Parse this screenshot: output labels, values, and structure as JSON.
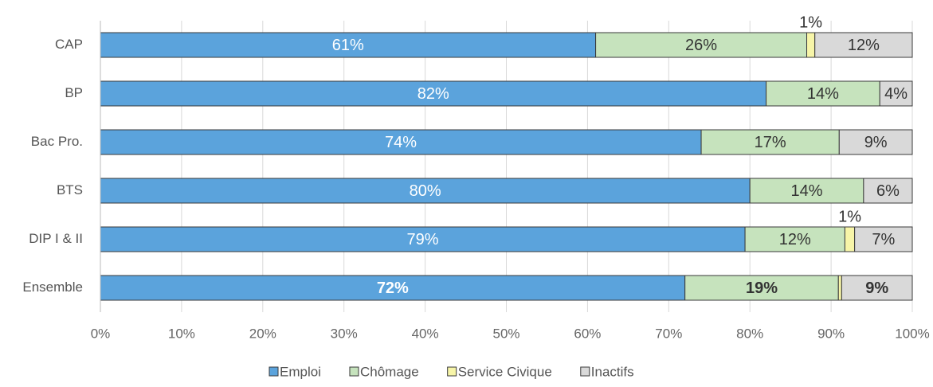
{
  "chart_data": {
    "type": "stacked-bar-horizontal",
    "categories": [
      "CAP",
      "BP",
      "Bac Pro.",
      "BTS",
      "DIP I & II",
      "Ensemble"
    ],
    "series": [
      {
        "name": "Emploi",
        "color": "#5ba3dc",
        "values": [
          61,
          82,
          74,
          80,
          79.4,
          72
        ],
        "value_labels": [
          "61%",
          "82%",
          "74%",
          "80%",
          "79%",
          "72%"
        ]
      },
      {
        "name": "Chômage",
        "color": "#c6e3bd",
        "values": [
          26,
          14,
          17,
          14,
          12.3,
          18.9
        ],
        "value_labels": [
          "26%",
          "14%",
          "17%",
          "14%",
          "12%",
          "19%"
        ]
      },
      {
        "name": "Service Civique",
        "color": "#f7f5a8",
        "values": [
          1,
          0,
          0,
          0,
          1.2,
          0.4
        ],
        "value_labels": [
          "1%",
          null,
          null,
          null,
          "1%",
          null
        ]
      },
      {
        "name": "Inactifs",
        "color": "#d9d9d9",
        "values": [
          12,
          4,
          9,
          6,
          7.1,
          8.7
        ],
        "value_labels": [
          "12%",
          "4%",
          "9%",
          "6%",
          "7%",
          "9%"
        ]
      }
    ],
    "xlim": [
      0,
      100
    ],
    "xticks": [
      {
        "value": 0,
        "label": "0%"
      },
      {
        "value": 10,
        "label": "10%"
      },
      {
        "value": 20,
        "label": "20%"
      },
      {
        "value": 30,
        "label": "30%"
      },
      {
        "value": 40,
        "label": "40%"
      },
      {
        "value": 50,
        "label": "50%"
      },
      {
        "value": 60,
        "label": "60%"
      },
      {
        "value": 70,
        "label": "70%"
      },
      {
        "value": 80,
        "label": "80%"
      },
      {
        "value": 90,
        "label": "90%"
      },
      {
        "value": 100,
        "label": "100%"
      }
    ],
    "grid": true,
    "legend": "bottom"
  }
}
